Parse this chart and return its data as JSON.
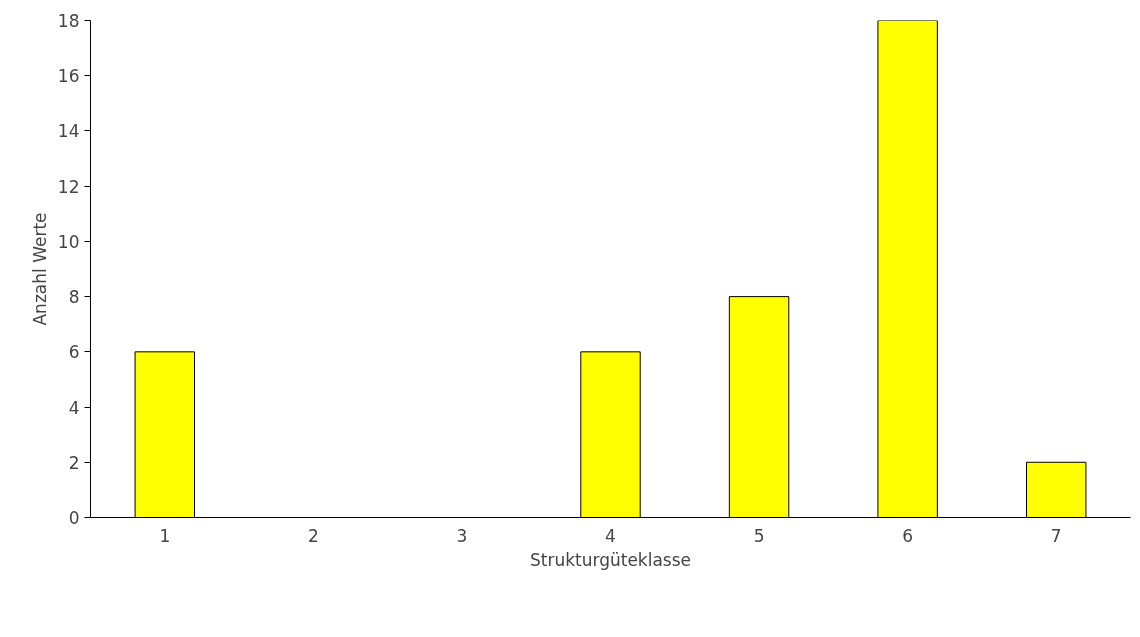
{
  "chart_data": {
    "type": "bar",
    "xlabel": "Strukturgüteklasse",
    "ylabel": "Anzahl Werte",
    "categories": [
      "1",
      "2",
      "3",
      "4",
      "5",
      "6",
      "7"
    ],
    "values": [
      6,
      0,
      0,
      6,
      8,
      18,
      2
    ],
    "color": "#ffff00",
    "ylim": [
      0,
      18
    ],
    "yticks": [
      0,
      2,
      4,
      6,
      8,
      10,
      12,
      14,
      16,
      18
    ],
    "grid": false
  }
}
